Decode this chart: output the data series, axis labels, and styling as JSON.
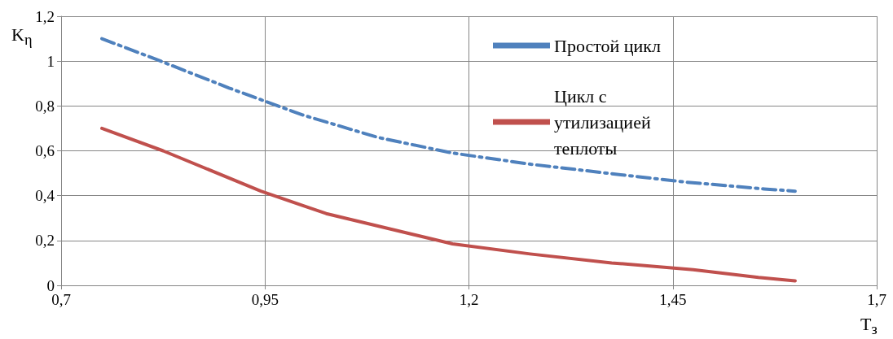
{
  "chart_data": {
    "type": "line",
    "xlabel": "T$_{з}$",
    "ylabel": "K$_{η}$",
    "xlim": [
      0.7,
      1.7
    ],
    "xticks": [
      {
        "value": 0.7,
        "label": "0,7"
      },
      {
        "value": 0.95,
        "label": "0,95"
      },
      {
        "value": 1.2,
        "label": "1,2"
      },
      {
        "value": 1.45,
        "label": "1,45"
      },
      {
        "value": 1.7,
        "label": "1,7"
      }
    ],
    "ylim": [
      0,
      1.2
    ],
    "yticks": [
      0,
      {
        "value": 0.2,
        "label": "0,2"
      },
      {
        "value": 0.4,
        "label": "0,4"
      },
      {
        "value": 0.6,
        "label": "0,6"
      },
      {
        "value": 0.8,
        "label": "0,8"
      },
      1,
      {
        "value": 1.2,
        "label": "1,2"
      }
    ],
    "grid": true,
    "legend": "top right",
    "marker": "none",
    "series": [
      {
        "name": "Простой цикл",
        "color": "#4f81bd",
        "line_style": "dashed",
        "x": [
          0.75,
          0.815,
          0.906,
          0.996,
          1.088,
          1.18,
          1.276,
          1.37,
          1.467,
          1.562,
          1.6
        ],
        "values": [
          1.1,
          1.01,
          0.88,
          0.76,
          0.66,
          0.59,
          0.54,
          0.5,
          0.46,
          0.43,
          0.42
        ]
      },
      {
        "name": "Цикл с утилизацией теплоты",
        "color": "#c0504d",
        "line_style": "solid",
        "x": [
          0.75,
          0.825,
          0.945,
          1.025,
          1.105,
          1.18,
          1.275,
          1.375,
          1.475,
          1.555,
          1.6
        ],
        "values": [
          0.7,
          0.6,
          0.42,
          0.32,
          0.25,
          0.185,
          0.14,
          0.1,
          0.07,
          0.035,
          0.02
        ]
      }
    ]
  }
}
